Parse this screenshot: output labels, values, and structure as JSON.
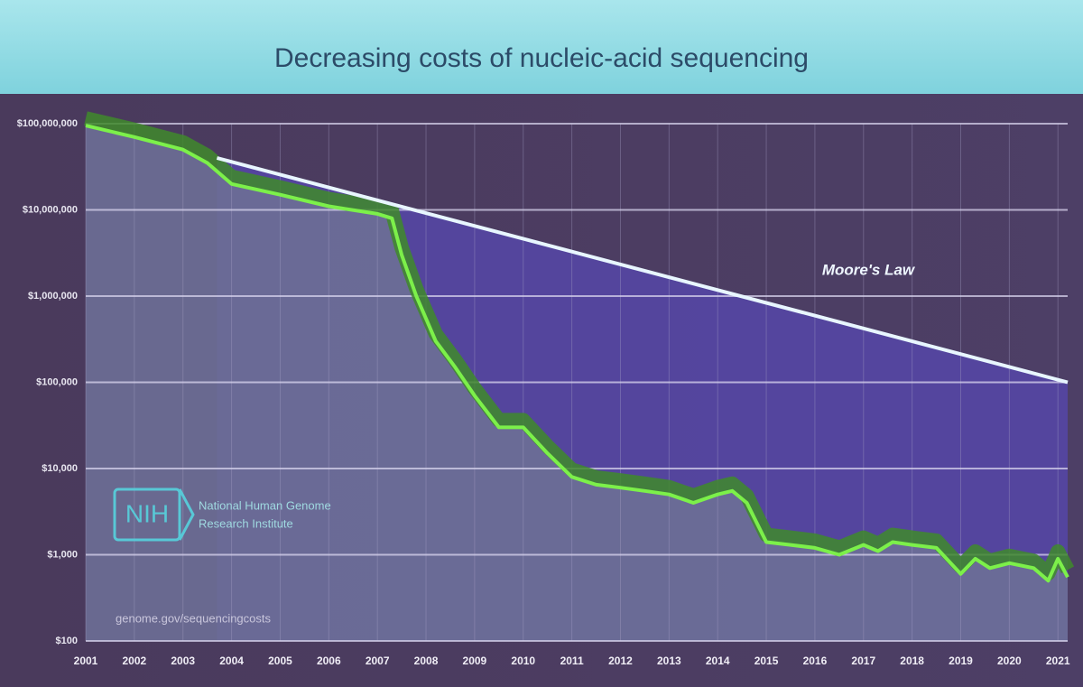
{
  "chart_data": {
    "type": "line",
    "title": "Decreasing costs of nucleic-acid sequencing",
    "log_y": true,
    "grid": true,
    "xlim": [
      2001,
      2021.2
    ],
    "xticks": [
      2001,
      2002,
      2003,
      2004,
      2005,
      2006,
      2007,
      2008,
      2009,
      2010,
      2011,
      2012,
      2013,
      2014,
      2015,
      2016,
      2017,
      2018,
      2019,
      2020,
      2021
    ],
    "ylim": [
      100,
      100000000
    ],
    "yticks": [
      {
        "value": 100,
        "label": "$100"
      },
      {
        "value": 1000,
        "label": "$1,000"
      },
      {
        "value": 10000,
        "label": "$10,000"
      },
      {
        "value": 100000,
        "label": "$100,000"
      },
      {
        "value": 1000000,
        "label": "$1,000,000"
      },
      {
        "value": 10000000,
        "label": "$10,000,000"
      },
      {
        "value": 100000000,
        "label": "$100,000,000"
      }
    ],
    "series": [
      {
        "color": "#7cf04a",
        "x": [
          2001,
          2002,
          2003,
          2003.5,
          2004,
          2005,
          2006,
          2007,
          2007.3,
          2007.5,
          2007.8,
          2008.2,
          2008.6,
          2009,
          2009.5,
          2010,
          2010.5,
          2011,
          2011.5,
          2012,
          2012.5,
          2013,
          2013.5,
          2014,
          2014.3,
          2014.6,
          2015,
          2015.5,
          2016,
          2016.5,
          2017,
          2017.3,
          2017.6,
          2018,
          2018.5,
          2019,
          2019.3,
          2019.6,
          2020,
          2020.5,
          2020.8,
          2021,
          2021.2
        ],
        "values": [
          95000000,
          70000000,
          50000000,
          35000000,
          20000000,
          15000000,
          11000000,
          9000000,
          8000000,
          3000000,
          1000000,
          300000,
          150000,
          70000,
          30000,
          30000,
          15000,
          8000,
          6500,
          6000,
          5500,
          5000,
          4000,
          5000,
          5500,
          4000,
          1400,
          1300,
          1200,
          1000,
          1300,
          1100,
          1400,
          1300,
          1200,
          600,
          900,
          700,
          800,
          700,
          500,
          900,
          550
        ]
      },
      {
        "name": "Moore's Law",
        "color": "#e8f6ff",
        "x": [
          2003.7,
          2021.2
        ],
        "values": [
          40000000,
          100000
        ]
      }
    ],
    "logo": {
      "mark": "NIH",
      "lines": [
        "National Human Genome",
        "Research Institute"
      ]
    },
    "source": "genome.gov/sequencingcosts"
  }
}
